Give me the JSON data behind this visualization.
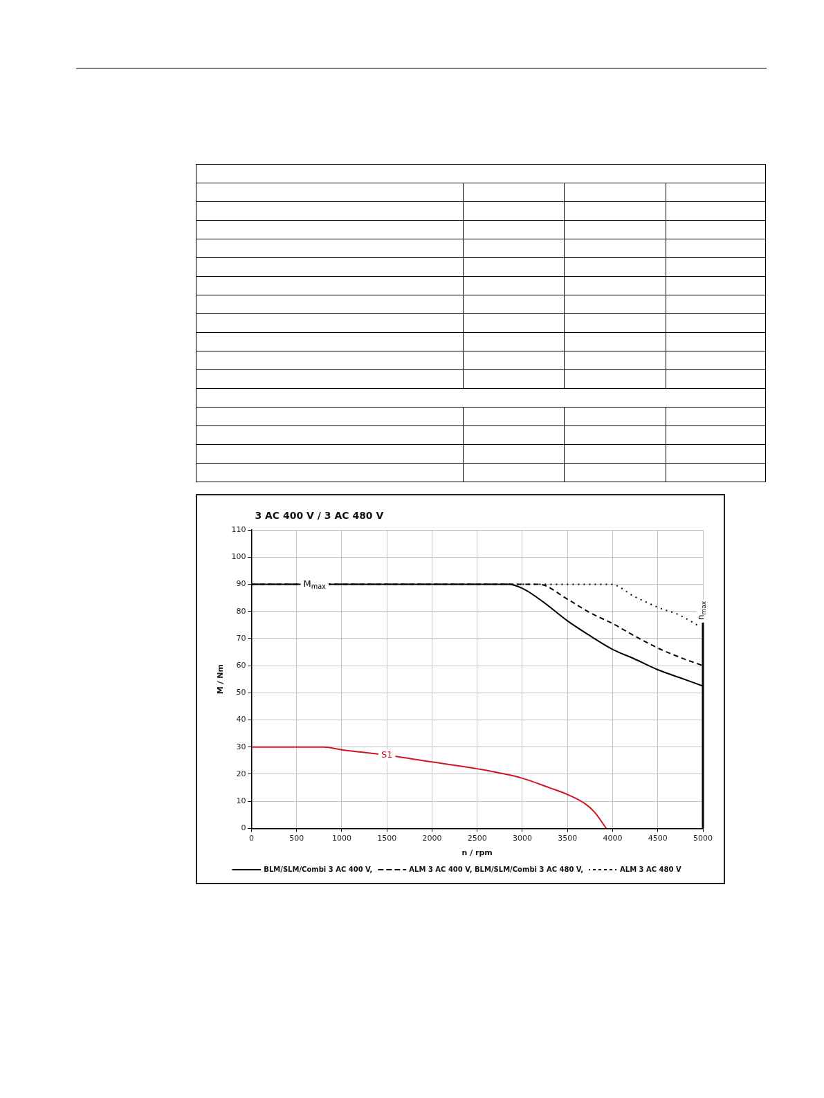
{
  "chart_data": {
    "type": "line",
    "title": "3 AC 400 V / 3 AC 480 V",
    "xlabel": "n / rpm",
    "ylabel": "M / Nm",
    "x": [
      0,
      2845,
      3000,
      3230,
      3500,
      3750,
      4000,
      4240,
      4500,
      4750,
      5000
    ],
    "series": [
      {
        "name": "BLM/SLM/Combi 3 AC 400 V,",
        "color": "#000000",
        "line_style": "solid",
        "values": [
          90,
          90,
          88.5,
          83.5,
          76.5,
          71,
          66,
          62.5,
          58.5,
          55.5,
          52.5
        ]
      },
      {
        "name": "ALM 3 AC 400 V, BLM/SLM/Combi 3 AC 480 V,",
        "color": "#000000",
        "line_style": "dashed",
        "x": [
          0,
          3180,
          3500,
          3750,
          4000,
          4240,
          4500,
          4750,
          5000
        ],
        "values": [
          90,
          90,
          84.5,
          79.5,
          75.5,
          71,
          66.5,
          63,
          60
        ]
      },
      {
        "name": "ALM 3 AC 480 V",
        "color": "#000000",
        "line_style": "dotted",
        "x": [
          0,
          3980,
          4240,
          4500,
          4750,
          4960
        ],
        "values": [
          90,
          90,
          85.5,
          81.5,
          78.5,
          74.5
        ]
      },
      {
        "color": "#d2151e",
        "line_style": "solid",
        "x": [
          0,
          800,
          1000,
          1500,
          2000,
          2500,
          3000,
          3300,
          3500,
          3700,
          3800,
          3930
        ],
        "values": [
          30,
          30,
          29,
          27,
          24.5,
          22,
          18.5,
          15,
          12.5,
          9,
          6,
          0
        ]
      }
    ],
    "annotations": [
      {
        "text": "M$_{max}$",
        "x": 700,
        "y": 90
      },
      {
        "text": "S1",
        "x": 1500,
        "y": 27
      }
    ],
    "ref_lines": [
      {
        "axis": "x",
        "value": 5000,
        "label": "n$_{max}$",
        "color": "#000000"
      }
    ],
    "xlim": [
      0,
      5000
    ],
    "xticks": [
      0,
      500,
      1000,
      1500,
      2000,
      2500,
      3000,
      3500,
      4000,
      4500,
      5000
    ],
    "ylim": [
      0,
      110
    ],
    "yticks": [
      0,
      10,
      20,
      30,
      40,
      50,
      60,
      70,
      80,
      90,
      100,
      110
    ],
    "grid": true,
    "legend": "bottom",
    "marker": "none"
  }
}
